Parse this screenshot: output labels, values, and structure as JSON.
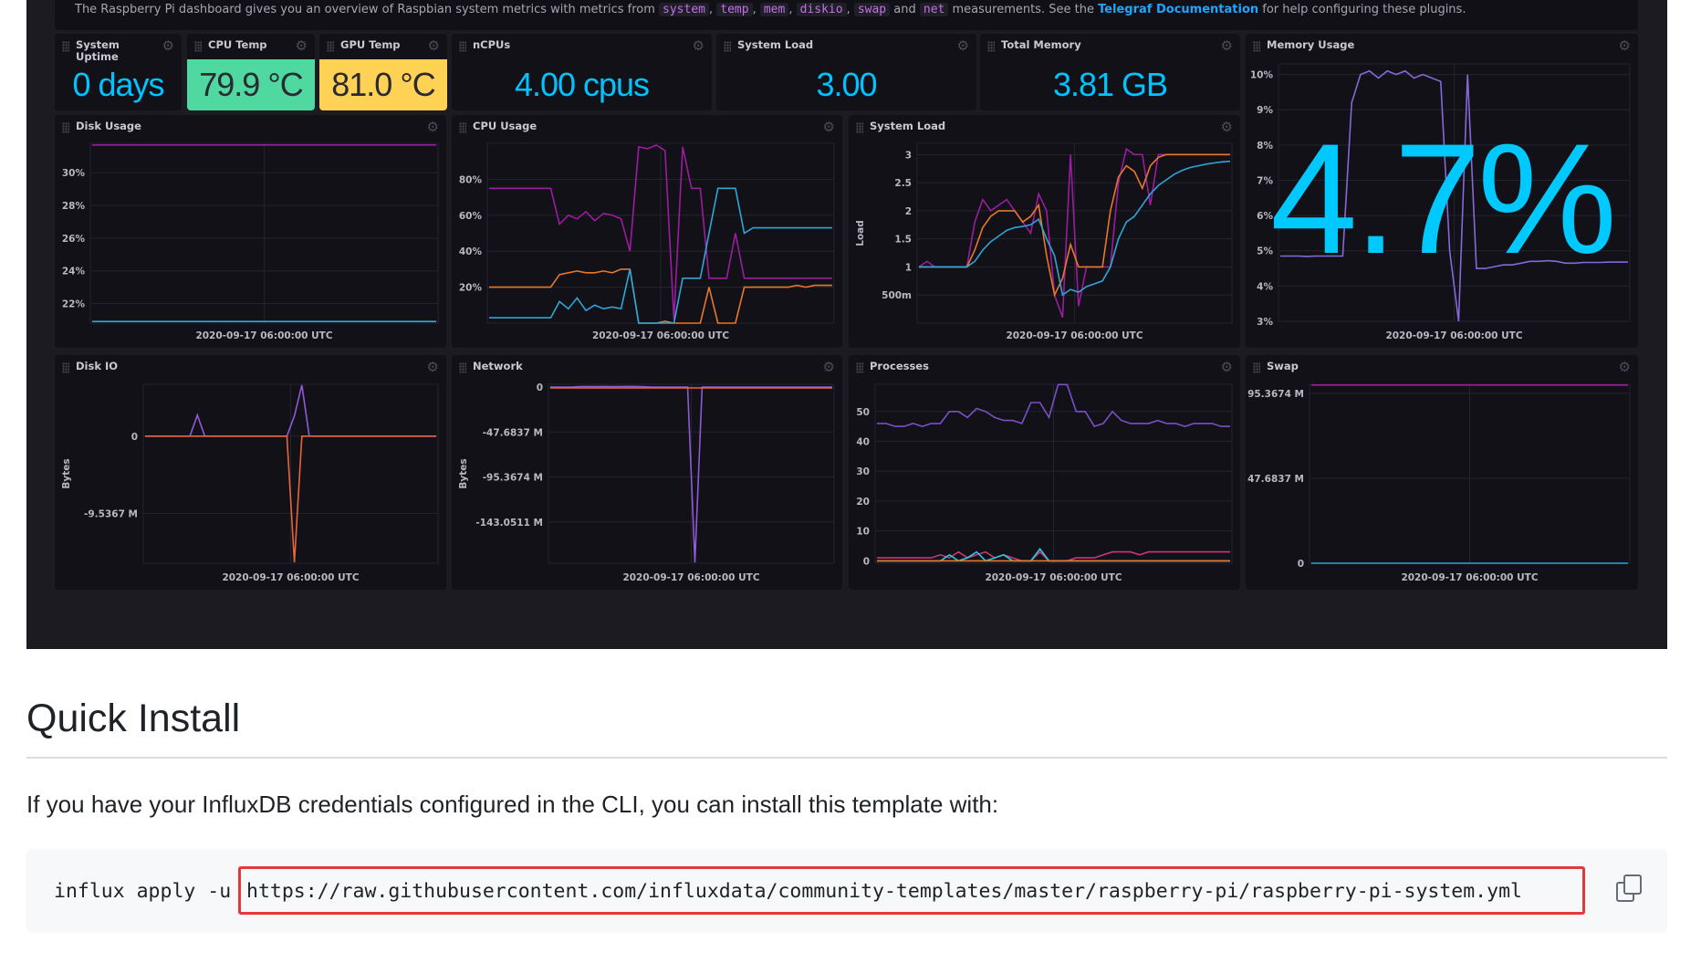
{
  "intro": {
    "pre": "The Raspberry Pi dashboard gives you an overview of Raspbian system metrics with metrics from ",
    "codes": [
      "system",
      "temp",
      "mem",
      "diskio",
      "swap",
      "net"
    ],
    "seps": [
      ", ",
      ", ",
      ", ",
      ", ",
      " and "
    ],
    "post": " measurements. See the ",
    "link": "Telegraf Documentation",
    "end": " for help configuring these plugins."
  },
  "stats": [
    {
      "title": "System Uptime",
      "value": "0 days",
      "style": "plain"
    },
    {
      "title": "CPU Temp",
      "value": "79.9 °C",
      "style": "green",
      "color": "#4fd8a0"
    },
    {
      "title": "GPU Temp",
      "value": "81.0 °C",
      "style": "yellow",
      "color": "#ffd255"
    },
    {
      "title": "nCPUs",
      "value": "4.00 cpus",
      "style": "plain"
    },
    {
      "title": "System Load",
      "value": "3.00",
      "style": "plain"
    },
    {
      "title": "Total Memory",
      "value": "3.81 GB",
      "style": "plain"
    }
  ],
  "memory": {
    "title": "Memory Usage",
    "value": "4.7%"
  },
  "chart_data": [
    {
      "id": "disk-usage",
      "title": "Disk Usage",
      "type": "line",
      "xlabel": "2020-09-17 06:00:00 UTC",
      "ylabel": "",
      "ylim": [
        20.8,
        31.8
      ],
      "yticks": [
        {
          "v": 22,
          "l": "22%"
        },
        {
          "v": 24,
          "l": "24%"
        },
        {
          "v": 26,
          "l": "26%"
        },
        {
          "v": 28,
          "l": "28%"
        },
        {
          "v": 30,
          "l": "30%"
        }
      ],
      "series": [
        {
          "color": "#9b1ca0",
          "values": [
            31.7,
            31.7,
            31.7,
            31.7,
            31.7,
            31.7,
            31.7,
            31.7,
            31.7,
            31.7,
            31.7,
            31.7,
            31.7,
            31.7,
            31.7,
            31.7,
            31.7,
            31.7,
            31.7,
            31.7,
            31.7,
            31.7,
            31.7,
            31.7,
            31.7,
            31.7,
            31.7,
            31.7,
            31.7,
            31.7,
            31.7,
            31.7,
            31.7,
            31.7,
            31.7,
            31.7,
            31.7,
            31.7,
            31.7,
            31.7
          ]
        },
        {
          "color": "#2fa5d8",
          "values": [
            20.9,
            20.9,
            20.9,
            20.9,
            20.9,
            20.9,
            20.9,
            20.9,
            20.9,
            20.9,
            20.9,
            20.9,
            20.9,
            20.9,
            20.9,
            20.9,
            20.9,
            20.9,
            20.9,
            20.9,
            20.9,
            20.9,
            20.9,
            20.9,
            20.9,
            20.9,
            20.9,
            20.9,
            20.9,
            20.9,
            20.9,
            20.9,
            20.9,
            20.9,
            20.9,
            20.9,
            20.9,
            20.9,
            20.9,
            20.9
          ]
        }
      ]
    },
    {
      "id": "cpu-usage",
      "title": "CPU Usage",
      "type": "line",
      "xlabel": "2020-09-17 06:00:00 UTC",
      "ylabel": "",
      "ylim": [
        0,
        100
      ],
      "yticks": [
        {
          "v": 20,
          "l": "20%"
        },
        {
          "v": 40,
          "l": "40%"
        },
        {
          "v": 60,
          "l": "60%"
        },
        {
          "v": 80,
          "l": "80%"
        }
      ],
      "series": [
        {
          "color": "#9b1ca0",
          "values": [
            75,
            75,
            75,
            75,
            75,
            75,
            75,
            75,
            55,
            60,
            58,
            62,
            57,
            61,
            60,
            58,
            40,
            98,
            97,
            99,
            96,
            2,
            98,
            75,
            75,
            25,
            25,
            25,
            50,
            25,
            25,
            25,
            25,
            25,
            25,
            25,
            25,
            25,
            25,
            25
          ]
        },
        {
          "color": "#e8772e",
          "values": [
            20,
            20,
            20,
            20,
            20,
            20,
            20,
            20,
            27,
            28,
            29,
            28,
            28,
            29,
            28,
            30,
            30,
            0,
            0,
            0,
            1,
            0,
            0,
            0,
            0,
            20,
            0,
            0,
            0,
            20,
            20,
            20,
            20,
            20,
            20,
            21,
            20,
            21,
            21,
            21
          ]
        },
        {
          "color": "#2fa5d8",
          "values": [
            3,
            3,
            3,
            3,
            3,
            3,
            3,
            3,
            12,
            8,
            14,
            7,
            10,
            8,
            9,
            8,
            30,
            0,
            0,
            0,
            0,
            0,
            25,
            25,
            25,
            50,
            75,
            75,
            75,
            50,
            53,
            53,
            53,
            53,
            53,
            53,
            53,
            53,
            53,
            53
          ]
        }
      ]
    },
    {
      "id": "system-load",
      "title": "System Load",
      "type": "line",
      "xlabel": "2020-09-17 06:00:00 UTC",
      "ylabel": "Load",
      "ylim": [
        0,
        3.2
      ],
      "yticks": [
        {
          "v": 0.5,
          "l": "500m"
        },
        {
          "v": 1,
          "l": "1"
        },
        {
          "v": 1.5,
          "l": "1.5"
        },
        {
          "v": 2,
          "l": "2"
        },
        {
          "v": 2.5,
          "l": "2.5"
        },
        {
          "v": 3,
          "l": "3"
        }
      ],
      "series": [
        {
          "color": "#9b1ca0",
          "values": [
            1,
            1.1,
            1,
            1,
            1,
            1,
            1,
            1.8,
            2.2,
            2.0,
            2.1,
            2.2,
            2.0,
            1.8,
            1.6,
            2.3,
            2.0,
            0.5,
            0.1,
            3.0,
            0.3,
            1.0,
            1,
            1,
            1,
            2.5,
            3.1,
            3,
            3,
            2.1,
            3,
            3,
            3,
            3,
            3,
            3,
            3,
            3,
            3,
            3
          ]
        },
        {
          "color": "#e8772e",
          "values": [
            1,
            1,
            1,
            1,
            1,
            1,
            1,
            1.3,
            1.7,
            1.9,
            2.0,
            2.0,
            2.0,
            1.8,
            1.9,
            2.1,
            1.2,
            0.5,
            0.8,
            1.4,
            1.0,
            1.0,
            1.0,
            1.0,
            2.0,
            2.6,
            2.8,
            2.7,
            2.4,
            2.8,
            2.95,
            3,
            3,
            3,
            3,
            3,
            3,
            3,
            3,
            3
          ]
        },
        {
          "color": "#2fa5d8",
          "values": [
            1,
            1,
            1,
            1,
            1,
            1,
            1,
            1.1,
            1.3,
            1.45,
            1.55,
            1.65,
            1.7,
            1.72,
            1.75,
            1.85,
            1.5,
            1.2,
            0.5,
            0.6,
            0.55,
            0.65,
            0.7,
            0.75,
            1.0,
            1.5,
            1.8,
            1.9,
            2.1,
            2.3,
            2.45,
            2.55,
            2.65,
            2.72,
            2.77,
            2.8,
            2.83,
            2.85,
            2.87,
            2.88
          ]
        }
      ]
    },
    {
      "id": "memory-usage",
      "title": "Memory Usage",
      "type": "line",
      "xlabel": "2020-09-17 06:00:00 UTC",
      "ylabel": "",
      "ylim": [
        3,
        10.3
      ],
      "yticks": [
        {
          "v": 3,
          "l": "3%"
        },
        {
          "v": 4,
          "l": "4%"
        },
        {
          "v": 5,
          "l": "5%"
        },
        {
          "v": 6,
          "l": "6%"
        },
        {
          "v": 7,
          "l": "7%"
        },
        {
          "v": 8,
          "l": "8%"
        },
        {
          "v": 9,
          "l": "9%"
        },
        {
          "v": 10,
          "l": "10%"
        }
      ],
      "series": [
        {
          "color": "#8569d6",
          "values": [
            4.85,
            4.85,
            4.85,
            4.84,
            4.85,
            4.85,
            4.85,
            4.85,
            9.2,
            10.0,
            10.1,
            9.9,
            10.1,
            10.0,
            10.1,
            9.9,
            10.0,
            9.9,
            9.8,
            5.0,
            3.0,
            10.0,
            4.5,
            4.5,
            4.55,
            4.6,
            4.6,
            4.65,
            4.7,
            4.7,
            4.72,
            4.7,
            4.65,
            4.65,
            4.67,
            4.67,
            4.67,
            4.68,
            4.68,
            4.68
          ]
        }
      ]
    },
    {
      "id": "disk-io",
      "title": "Disk IO",
      "type": "line",
      "xlabel": "2020-09-17 06:00:00 UTC",
      "ylabel": "Bytes",
      "ylim": [
        -15.7,
        6.4
      ],
      "yticks": [
        {
          "v": 0,
          "l": "0"
        },
        {
          "v": -9.5367,
          "l": "-9.5367 M"
        }
      ],
      "series": [
        {
          "color": "#8e5ad8",
          "values": [
            0,
            0,
            0,
            0,
            0,
            0,
            0,
            2.6,
            0,
            0,
            0,
            0,
            0,
            0,
            0,
            0,
            0,
            0,
            0,
            0,
            2.5,
            6.3,
            0,
            0,
            0,
            0,
            0,
            0,
            0,
            0,
            0,
            0,
            0,
            0,
            0,
            0,
            0,
            0,
            0,
            0
          ]
        },
        {
          "color": "#e8653a",
          "values": [
            0,
            0,
            0,
            0,
            0,
            0,
            0,
            0,
            0,
            0,
            0,
            0,
            0,
            0,
            0,
            0,
            0,
            0,
            0,
            0,
            -15.6,
            0,
            0,
            0,
            0,
            0,
            0,
            0,
            0,
            0,
            0,
            0,
            0,
            0,
            0,
            0,
            0,
            0,
            0,
            0
          ]
        }
      ]
    },
    {
      "id": "network",
      "title": "Network",
      "type": "line",
      "xlabel": "2020-09-17 06:00:00 UTC",
      "ylabel": "Bytes",
      "ylim": [
        -186.8,
        2.9
      ],
      "yticks": [
        {
          "v": 0,
          "l": "0"
        },
        {
          "v": -47.6837,
          "l": "-47.6837 M"
        },
        {
          "v": -95.3674,
          "l": "-95.3674 M"
        },
        {
          "v": -143.0511,
          "l": "-143.0511 M"
        }
      ],
      "series": [
        {
          "color": "#8e5ad8",
          "values": [
            0,
            0,
            0,
            0,
            0.5,
            0.6,
            0.5,
            0.6,
            0.6,
            0.5,
            0.6,
            0.7,
            0.6,
            0.3,
            0,
            0,
            0,
            0,
            0,
            0,
            -186,
            0,
            0,
            0,
            0,
            0,
            0,
            0,
            0,
            0,
            0,
            0,
            0,
            0,
            0,
            0,
            0,
            0,
            0,
            0
          ]
        },
        {
          "color": "#e8653a",
          "values": [
            -1,
            -1,
            -1,
            -1,
            -1,
            -1,
            -1,
            -1,
            -1,
            -1,
            -1,
            -1,
            -1,
            -1,
            -1,
            -1,
            -1,
            -1,
            -1,
            -1,
            -1,
            -1,
            -1,
            -1,
            -1,
            -1,
            -1,
            -1,
            -1,
            -1,
            -1,
            -1,
            -1,
            -1,
            -1,
            -1,
            -1,
            -1,
            -1,
            -1
          ]
        }
      ]
    },
    {
      "id": "processes",
      "title": "Processes",
      "type": "line",
      "xlabel": "2020-09-17 06:00:00 UTC",
      "ylabel": "",
      "ylim": [
        -0.8,
        59.1
      ],
      "yticks": [
        {
          "v": 0,
          "l": "0"
        },
        {
          "v": 10,
          "l": "10"
        },
        {
          "v": 20,
          "l": "20"
        },
        {
          "v": 30,
          "l": "30"
        },
        {
          "v": 40,
          "l": "40"
        },
        {
          "v": 50,
          "l": "50"
        }
      ],
      "series": [
        {
          "color": "#7b4fc9",
          "values": [
            46,
            46,
            45,
            45,
            46,
            45,
            46,
            46,
            50,
            50,
            48,
            51,
            50,
            48,
            47,
            47,
            46,
            53,
            53,
            48,
            59,
            59,
            50,
            50,
            45,
            46,
            50,
            47,
            46,
            46,
            46,
            47,
            46,
            46,
            45,
            46,
            46,
            46,
            45,
            45
          ]
        },
        {
          "color": "#c73874",
          "values": [
            1,
            1,
            1,
            1,
            1,
            1,
            1,
            2,
            1,
            3,
            1,
            2,
            3,
            1,
            2,
            1,
            0,
            0,
            3,
            0,
            0,
            0,
            1,
            1,
            1,
            2,
            3,
            3,
            3,
            2,
            3,
            3,
            3,
            3,
            3,
            3,
            3,
            3,
            3,
            3
          ]
        },
        {
          "color": "#2fc3e8",
          "values": [
            0,
            0,
            0,
            0,
            0,
            0,
            0,
            0,
            2,
            0,
            1,
            3,
            0,
            1,
            2,
            0,
            0,
            0,
            4,
            0,
            0,
            0,
            0,
            0,
            0,
            0,
            0,
            0,
            0,
            0,
            0,
            0,
            0,
            0,
            0,
            0,
            0,
            0,
            0,
            0
          ]
        },
        {
          "color": "#e8772e",
          "values": [
            0,
            0,
            0,
            0,
            0,
            0,
            0,
            0,
            0,
            0,
            0,
            0,
            0,
            0,
            0,
            0,
            0,
            0,
            0,
            0,
            0,
            0,
            0,
            0,
            0,
            0,
            0,
            0,
            0,
            0,
            0,
            0,
            0,
            0,
            0,
            0,
            0,
            0,
            0,
            0
          ]
        }
      ]
    },
    {
      "id": "swap",
      "title": "Swap",
      "type": "line",
      "xlabel": "2020-09-17 06:00:00 UTC",
      "ylabel": "",
      "ylim": [
        0,
        100.4
      ],
      "yticks": [
        {
          "v": 0,
          "l": "0"
        },
        {
          "v": 47.6837,
          "l": "47.6837 M"
        },
        {
          "v": 95.3674,
          "l": "95.3674 M"
        }
      ],
      "series": [
        {
          "color": "#9b1ca0",
          "values": [
            100,
            100,
            100,
            100,
            100,
            100,
            100,
            100,
            100,
            100,
            100,
            100,
            100,
            100,
            100,
            100,
            100,
            100,
            100,
            100,
            100,
            100,
            100,
            100,
            100,
            100,
            100,
            100,
            100,
            100,
            100,
            100,
            100,
            100,
            100,
            100,
            100,
            100,
            100,
            100
          ]
        },
        {
          "color": "#2fa5d8",
          "values": [
            0,
            0,
            0,
            0,
            0,
            0,
            0,
            0,
            0,
            0,
            0,
            0,
            0,
            0,
            0,
            0,
            0,
            0,
            0,
            0,
            0,
            0,
            0,
            0,
            0,
            0,
            0,
            0,
            0,
            0,
            0,
            0,
            0,
            0,
            0,
            0,
            0,
            0,
            0,
            0
          ]
        }
      ]
    }
  ],
  "section": {
    "heading": "Quick Install",
    "paragraph": "If you have your InfluxDB credentials configured in the CLI, you can install this template with:",
    "command": "influx apply -u",
    "url": "https://raw.githubusercontent.com/influxdata/community-templates/master/raspberry-pi/raspberry-pi-system.yml"
  }
}
